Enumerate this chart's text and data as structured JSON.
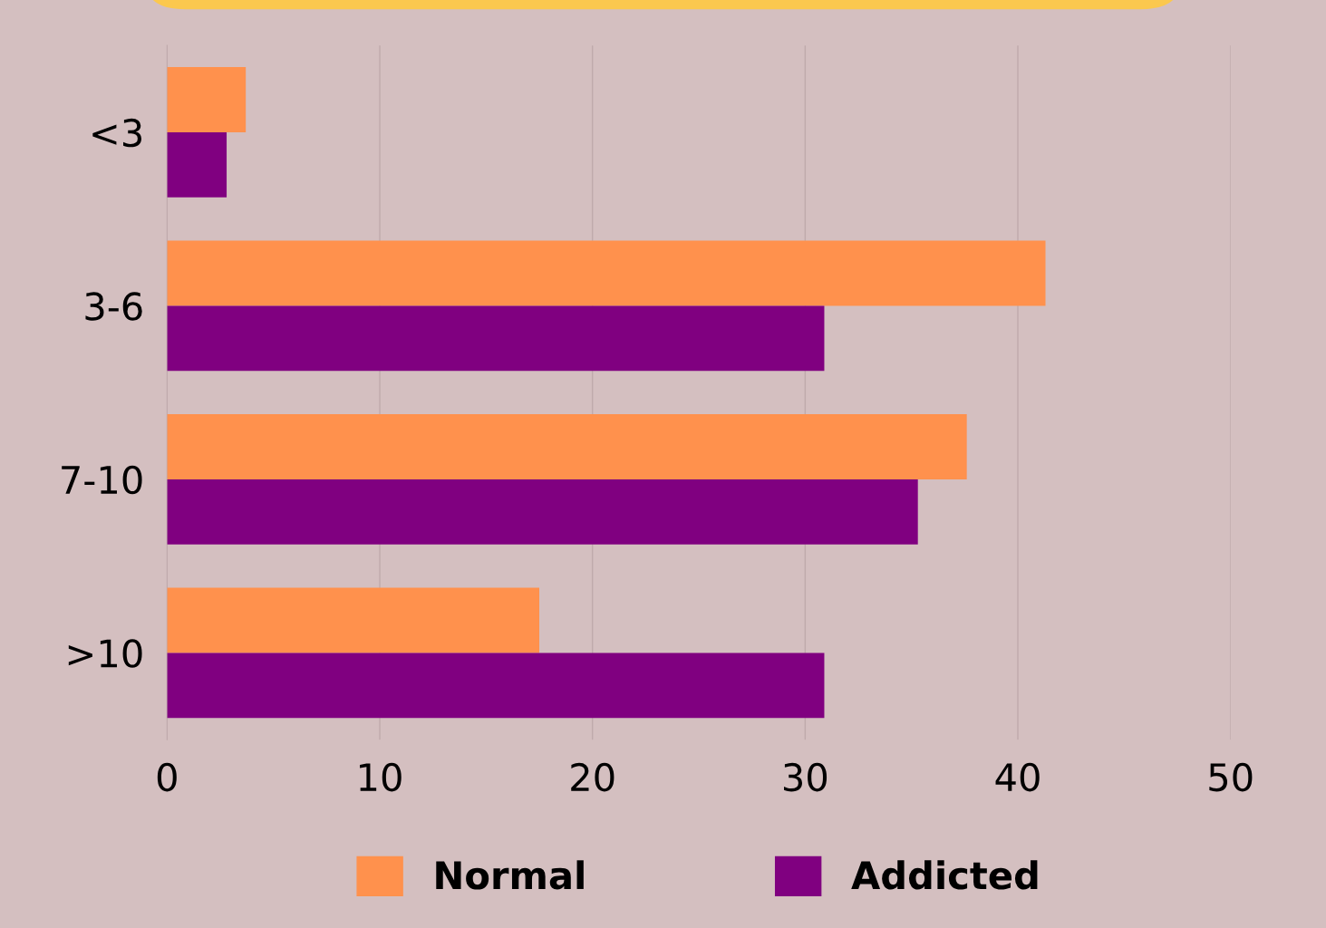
{
  "chart_data": {
    "type": "bar",
    "orientation": "horizontal",
    "categories": [
      "<3",
      "3-6",
      "7-10",
      ">10"
    ],
    "series": [
      {
        "name": "Normal",
        "color": "#ff914d",
        "values": [
          3.7,
          41.3,
          37.6,
          17.5
        ]
      },
      {
        "name": "Addicted",
        "color": "#800080",
        "values": [
          2.8,
          30.9,
          35.3,
          30.9
        ]
      }
    ],
    "xlim": [
      0,
      50
    ],
    "xticks": [
      0,
      10,
      20,
      30,
      40,
      50
    ],
    "grid": "x",
    "legend": "bottom"
  }
}
